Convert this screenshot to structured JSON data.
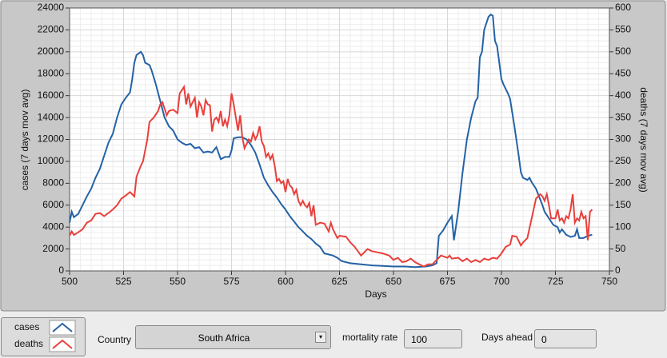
{
  "chart_data": {
    "type": "line",
    "xlabel": "Days",
    "ylabel": "cases  (7 days mov avg)",
    "y2label": "deaths  (7 days mov avg)",
    "xlim": [
      500,
      750
    ],
    "xticks": [
      500,
      525,
      550,
      575,
      600,
      625,
      650,
      675,
      700,
      725,
      750
    ],
    "ylim": [
      0,
      24000
    ],
    "yticks": [
      0,
      2000,
      4000,
      6000,
      8000,
      10000,
      12000,
      14000,
      16000,
      18000,
      20000,
      22000,
      24000
    ],
    "y2lim": [
      0,
      600
    ],
    "y2ticks": [
      0,
      50,
      100,
      150,
      200,
      250,
      300,
      350,
      400,
      450,
      500,
      550,
      600
    ],
    "grid": true,
    "series": [
      {
        "name": "cases",
        "color": "#2462a6",
        "axis": "y",
        "x": [
          500,
          501,
          502,
          504,
          506,
          508,
          510,
          512,
          514,
          516,
          518,
          520,
          522,
          524,
          526,
          528,
          529,
          530,
          531,
          533,
          534,
          535,
          537,
          538,
          540,
          542,
          544,
          546,
          548,
          550,
          552,
          554,
          556,
          558,
          560,
          562,
          564,
          566,
          568,
          570,
          572,
          574,
          575,
          576,
          578,
          580,
          582,
          584,
          586,
          588,
          590,
          592,
          594,
          596,
          598,
          600,
          602,
          604,
          606,
          608,
          610,
          612,
          614,
          616,
          618,
          620,
          622,
          624,
          626,
          630,
          635,
          640,
          645,
          650,
          655,
          660,
          665,
          668,
          670,
          671,
          673,
          675,
          677,
          678,
          680,
          682,
          684,
          686,
          688,
          689,
          690,
          691,
          692,
          694,
          695,
          696,
          697,
          698,
          699,
          700,
          701,
          703,
          704,
          706,
          708,
          709,
          710,
          712,
          713,
          714,
          716,
          718,
          719,
          720,
          722,
          724,
          726,
          727,
          728,
          730,
          732,
          734,
          735,
          736,
          738,
          740,
          742
        ],
        "values": [
          4400,
          5400,
          4900,
          5200,
          6000,
          6800,
          7500,
          8500,
          9300,
          10500,
          11700,
          12500,
          14000,
          15200,
          15800,
          16300,
          17500,
          19000,
          19700,
          20000,
          19700,
          19000,
          18800,
          18300,
          17000,
          15500,
          14000,
          13200,
          12800,
          12000,
          11700,
          11500,
          11600,
          11200,
          11300,
          10800,
          10900,
          10800,
          11300,
          10200,
          10400,
          10400,
          11000,
          12100,
          12200,
          12200,
          12000,
          11500,
          10800,
          9700,
          8500,
          7800,
          7200,
          6700,
          6100,
          5600,
          5000,
          4500,
          4000,
          3600,
          3200,
          2900,
          2500,
          2200,
          1600,
          1500,
          1400,
          1200,
          900,
          700,
          600,
          500,
          450,
          400,
          400,
          350,
          400,
          500,
          700,
          3200,
          3700,
          4400,
          5000,
          2800,
          5500,
          9000,
          12000,
          14000,
          15500,
          15800,
          19500,
          20000,
          22000,
          23200,
          23400,
          23300,
          21000,
          20500,
          19000,
          17500,
          17000,
          16200,
          15700,
          13200,
          10500,
          9000,
          8500,
          8300,
          8500,
          8100,
          7500,
          6500,
          6000,
          5400,
          4800,
          4200,
          4000,
          3500,
          3800,
          3300,
          3100,
          3200,
          3800,
          3000,
          3000,
          3200,
          3300
        ]
      },
      {
        "name": "deaths",
        "color": "#e8403c",
        "axis": "y2",
        "x": [
          500,
          501,
          502,
          504,
          506,
          508,
          510,
          512,
          514,
          516,
          518,
          520,
          522,
          524,
          526,
          528,
          530,
          531,
          533,
          534,
          536,
          537,
          539,
          541,
          542,
          543,
          545,
          546,
          548,
          550,
          551,
          553,
          554,
          555,
          556,
          558,
          559,
          560,
          561,
          562,
          563,
          564,
          565,
          566,
          567,
          568,
          569,
          570,
          571,
          572,
          573,
          574,
          575,
          576,
          578,
          579,
          580,
          581,
          583,
          584,
          585,
          586,
          587,
          588,
          589,
          590,
          591,
          592,
          593,
          594,
          595,
          596,
          597,
          598,
          599,
          600,
          601,
          602,
          603,
          604,
          605,
          606,
          607,
          608,
          609,
          610,
          611,
          612,
          613,
          614,
          616,
          618,
          620,
          621,
          622,
          624,
          625,
          628,
          630,
          632,
          635,
          638,
          640,
          645,
          648,
          650,
          652,
          654,
          656,
          658,
          660,
          662,
          664,
          666,
          668,
          670,
          672,
          675,
          676,
          677,
          680,
          682,
          684,
          686,
          688,
          690,
          692,
          694,
          696,
          698,
          700,
          702,
          704,
          705,
          707,
          709,
          710,
          712,
          714,
          716,
          718,
          719,
          720,
          721,
          722,
          723,
          725,
          726,
          727,
          728,
          729,
          730,
          731,
          732,
          733,
          734,
          735,
          736,
          737,
          738,
          739,
          740,
          741,
          742
        ],
        "values": [
          80,
          90,
          82,
          88,
          95,
          110,
          115,
          130,
          132,
          125,
          132,
          140,
          150,
          165,
          172,
          180,
          170,
          215,
          240,
          250,
          300,
          340,
          350,
          365,
          380,
          385,
          355,
          365,
          368,
          360,
          405,
          420,
          380,
          405,
          375,
          395,
          350,
          385,
          375,
          355,
          390,
          380,
          378,
          318,
          345,
          350,
          340,
          365,
          330,
          345,
          330,
          355,
          405,
          380,
          320,
          355,
          305,
          280,
          300,
          295,
          315,
          300,
          310,
          330,
          295,
          285,
          260,
          268,
          255,
          265,
          240,
          205,
          210,
          200,
          205,
          180,
          210,
          195,
          190,
          175,
          185,
          160,
          150,
          160,
          150,
          145,
          155,
          125,
          150,
          105,
          110,
          108,
          90,
          110,
          95,
          75,
          80,
          78,
          65,
          55,
          35,
          50,
          45,
          40,
          35,
          25,
          30,
          20,
          22,
          28,
          20,
          15,
          10,
          15,
          15,
          25,
          35,
          30,
          35,
          28,
          30,
          22,
          28,
          20,
          25,
          20,
          28,
          25,
          30,
          28,
          40,
          55,
          60,
          80,
          78,
          58,
          65,
          75,
          120,
          165,
          175,
          170,
          160,
          175,
          150,
          120,
          120,
          140,
          115,
          120,
          110,
          125,
          120,
          140,
          175,
          110,
          120,
          115,
          135,
          120,
          125,
          70,
          135,
          140
        ]
      }
    ]
  },
  "controls": {
    "country_label": "Country",
    "country": "South Africa",
    "mortality_label": "mortality rate",
    "mortality": "100",
    "days_label": "Days ahead",
    "days": "0"
  }
}
